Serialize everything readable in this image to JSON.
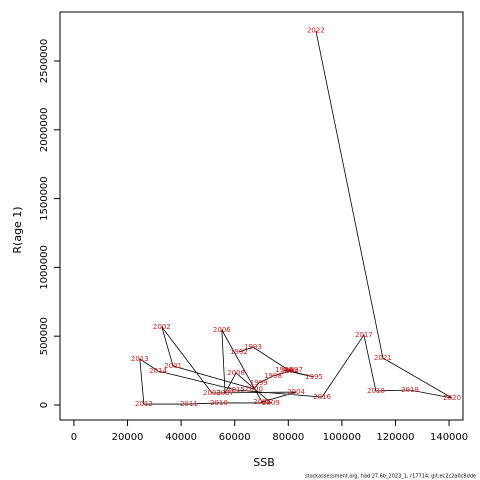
{
  "chart_data": {
    "type": "line",
    "x_label": "SSB",
    "y_label": "R(age 1)",
    "footer": "stockassessment.org, had.27.6b_2023_1, r17714, git:ec2c2a0c8dde",
    "point_labels": [
      "1992",
      "1993",
      "1994",
      "1995",
      "1996",
      "1997",
      "1998",
      "1999",
      "2000",
      "2001",
      "2002",
      "2003",
      "2004",
      "2005",
      "2006",
      "2007",
      "2008",
      "2009",
      "2010",
      "2011",
      "2012",
      "2013",
      "2014",
      "2015",
      "2016",
      "2017",
      "2018",
      "2019",
      "2020",
      "2021",
      "2022"
    ],
    "x": [
      61600,
      66800,
      80600,
      89600,
      78400,
      82100,
      74300,
      69000,
      67200,
      37000,
      32800,
      51500,
      82900,
      70200,
      55200,
      56400,
      60500,
      73500,
      54100,
      42900,
      26100,
      24600,
      31400,
      60500,
      92600,
      108200,
      112700,
      125400,
      141100,
      115300,
      90300
    ],
    "values": [
      385000,
      421000,
      247000,
      203000,
      254000,
      254000,
      211000,
      160000,
      116000,
      283000,
      567000,
      87000,
      94000,
      22000,
      545000,
      87000,
      233000,
      15000,
      15000,
      7000,
      7000,
      334000,
      247000,
      109000,
      58000,
      509000,
      102000,
      109000,
      51000,
      342000,
      2720000
    ],
    "line_color": "#000000",
    "label_color": "#e41a1c",
    "xlim": [
      -5200,
      145200
    ],
    "ylim": [
      -109000,
      2856000
    ],
    "xticks": [
      0,
      20000,
      40000,
      60000,
      80000,
      100000,
      120000,
      140000
    ],
    "yticks": [
      0,
      500000,
      1000000,
      1500000,
      2000000,
      2500000
    ]
  }
}
